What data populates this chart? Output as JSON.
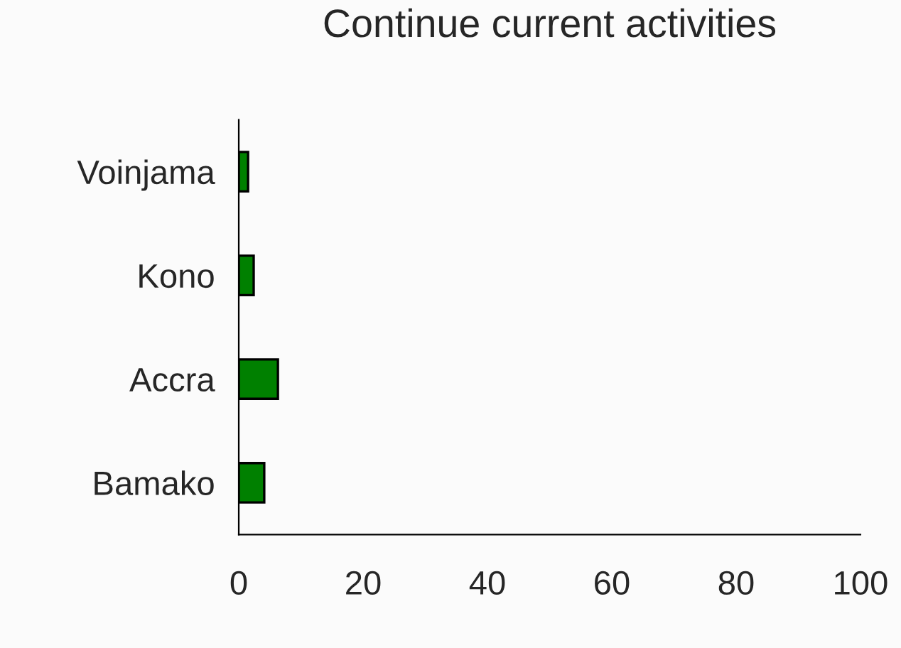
{
  "chart_data": {
    "type": "bar",
    "orientation": "horizontal",
    "title": "Continue current activities",
    "categories": [
      "Voinjama",
      "Kono",
      "Accra",
      "Bamako"
    ],
    "values": [
      1.5,
      2.4,
      6.3,
      4.1
    ],
    "color": "#008000",
    "xlim": [
      0,
      100
    ],
    "xticks": [
      0,
      20,
      40,
      60,
      80,
      100
    ],
    "grid": false,
    "legend": false
  }
}
